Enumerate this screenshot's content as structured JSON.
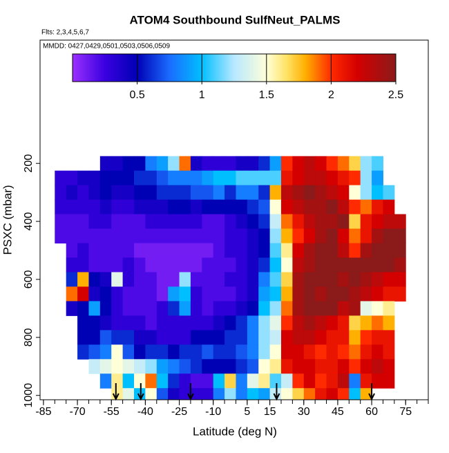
{
  "chart_data": {
    "type": "curtain",
    "title": "ATOM4 Southbound SulfNeut_PALMS",
    "subtitle": "Flts: 2,3,4,5,6,7",
    "annotation": "MMDD: 0427,0429,0501,0503,0506,0509",
    "xlabel": "Latitude (deg N)",
    "ylabel": "PSXC (mbar)",
    "xlim": [
      -86.5,
      85
    ],
    "ylim": [
      -225,
      1015
    ],
    "xticks": [
      -85,
      -70,
      -55,
      -40,
      -25,
      -10,
      5,
      15,
      30,
      45,
      60,
      75
    ],
    "xminorticks": [
      -85,
      -80,
      -75,
      -70,
      -65,
      -60,
      -55,
      -50,
      -45,
      -40,
      -35,
      -30,
      -25,
      -20,
      -15,
      -10,
      -5,
      0,
      5,
      10,
      15,
      20,
      25,
      30,
      35,
      40,
      45,
      50,
      55,
      60,
      65,
      70,
      75,
      80,
      85
    ],
    "yticks": [
      200,
      400,
      600,
      800,
      1000
    ],
    "colorbar_lim": [
      0,
      2.5
    ],
    "colorbar_ticks": [
      0.5,
      1.0,
      1.5,
      2.0,
      2.5
    ],
    "colorscale": [
      [
        0,
        "#9b30ff"
      ],
      [
        0.25,
        "#3a00e0"
      ],
      [
        0.5,
        "#0000b4"
      ],
      [
        0.75,
        "#1a6cff"
      ],
      [
        1.0,
        "#00bfff"
      ],
      [
        1.25,
        "#b8e8ff"
      ],
      [
        1.5,
        "#ffffd8"
      ],
      [
        1.65,
        "#ffe46a"
      ],
      [
        1.8,
        "#ffb000"
      ],
      [
        2.0,
        "#ff2a00"
      ],
      [
        2.2,
        "#d40000"
      ],
      [
        2.5,
        "#8b1a1a"
      ]
    ],
    "arrows": [
      -53,
      -42,
      -20,
      18,
      60
    ],
    "lat_edges": [
      -80,
      -75,
      -70,
      -65,
      -60,
      -55,
      -50,
      -45,
      -40,
      -35,
      -30,
      -25,
      -20,
      -15,
      -10,
      -5,
      0,
      5,
      10,
      15,
      20,
      25,
      30,
      35,
      40,
      45,
      50,
      55,
      60,
      65,
      70,
      75
    ],
    "pressure": [
      200,
      250,
      300,
      350,
      400,
      450,
      500,
      550,
      600,
      650,
      700,
      750,
      800,
      850,
      900,
      950,
      1000
    ],
    "values": [
      [
        null,
        null,
        null,
        null,
        0.4,
        0.4,
        0.5,
        0.5,
        0.8,
        0.9,
        1.2,
        1.9,
        0.4,
        0.3,
        0.3,
        0.3,
        0.4,
        0.4,
        0.6,
        0.9,
        2.0,
        2.2,
        2.3,
        2.2,
        2.0,
        1.9,
        1.7,
        1.2,
        1.1,
        null,
        null
      ],
      [
        0.3,
        0.3,
        0.4,
        0.4,
        0.5,
        0.5,
        0.5,
        0.6,
        0.6,
        0.7,
        0.8,
        0.8,
        0.8,
        0.9,
        1.0,
        1.0,
        1.1,
        1.1,
        1.1,
        1.1,
        2.1,
        2.2,
        2.3,
        2.3,
        2.2,
        2.1,
        2.0,
        1.2,
        0.9,
        null,
        null
      ],
      [
        0.3,
        0.4,
        0.3,
        0.4,
        0.5,
        0.4,
        0.4,
        0.5,
        0.5,
        0.6,
        0.6,
        0.6,
        0.7,
        0.7,
        0.8,
        0.6,
        0.8,
        0.8,
        0.6,
        1.8,
        2.3,
        2.4,
        2.5,
        2.4,
        2.3,
        2.2,
        1.5,
        1.2,
        1.0,
        1.1,
        null
      ],
      [
        0.3,
        0.3,
        0.3,
        0.3,
        0.4,
        0.3,
        0.3,
        0.4,
        0.4,
        0.4,
        0.5,
        0.5,
        0.4,
        0.5,
        0.5,
        0.5,
        0.5,
        0.6,
        0.7,
        1.5,
        2.2,
        2.3,
        2.4,
        2.4,
        2.5,
        2.3,
        2.0,
        1.9,
        2.1,
        2.2,
        null
      ],
      [
        0.2,
        0.2,
        0.2,
        0.3,
        0.3,
        0.2,
        0.2,
        0.2,
        0.3,
        0.3,
        0.3,
        0.3,
        0.3,
        0.2,
        0.2,
        0.3,
        0.4,
        0.5,
        0.6,
        1.3,
        1.9,
        2.1,
        2.3,
        2.4,
        2.4,
        2.5,
        1.7,
        2.1,
        2.2,
        2.3,
        2.3
      ],
      [
        0.2,
        0.2,
        0.2,
        0.2,
        0.2,
        0.2,
        0.2,
        0.2,
        0.2,
        0.2,
        0.2,
        0.2,
        0.2,
        0.2,
        0.2,
        0.3,
        0.3,
        0.4,
        0.5,
        1.2,
        1.8,
        2.0,
        2.2,
        2.4,
        2.5,
        2.2,
        1.9,
        2.1,
        2.4,
        2.5,
        2.5
      ],
      [
        null,
        0.2,
        0.3,
        0.2,
        0.2,
        0.2,
        0.2,
        0.1,
        0.1,
        0.1,
        0.1,
        0.1,
        0.1,
        0.1,
        0.2,
        0.3,
        0.3,
        0.4,
        0.5,
        1.1,
        1.6,
        2.2,
        2.4,
        2.5,
        2.5,
        2.3,
        2.0,
        2.4,
        2.5,
        2.5,
        2.5
      ],
      [
        null,
        0.3,
        0.3,
        0.2,
        0.2,
        0.2,
        0.3,
        0.2,
        0.1,
        0.1,
        0.1,
        0.1,
        0.1,
        0.2,
        0.2,
        0.2,
        0.3,
        0.4,
        0.6,
        1.0,
        1.5,
        2.3,
        2.4,
        2.5,
        2.5,
        2.5,
        2.5,
        2.5,
        2.5,
        2.5,
        2.4
      ],
      [
        null,
        0.6,
        1.8,
        0.5,
        0.4,
        1.4,
        0.3,
        0.2,
        0.2,
        0.1,
        0.1,
        1.2,
        0.2,
        0.2,
        0.2,
        0.3,
        0.3,
        0.4,
        0.8,
        1.1,
        1.7,
        2.4,
        2.5,
        2.5,
        2.5,
        2.4,
        2.5,
        2.4,
        2.3,
        2.2,
        2.2
      ],
      [
        null,
        1.9,
        2.2,
        0.4,
        0.5,
        0.3,
        0.2,
        0.2,
        0.2,
        0.1,
        0.9,
        1.0,
        0.3,
        0.2,
        0.2,
        0.2,
        0.3,
        0.4,
        0.9,
        1.0,
        1.8,
        2.4,
        2.5,
        2.4,
        2.5,
        2.5,
        2.4,
        2.3,
        2.2,
        2.1,
        2.1
      ],
      [
        null,
        0.4,
        0.5,
        0.9,
        0.5,
        0.3,
        0.2,
        0.2,
        0.2,
        0.3,
        0.6,
        0.9,
        0.3,
        0.2,
        0.3,
        0.3,
        0.4,
        0.5,
        1.0,
        1.2,
        1.9,
        2.4,
        2.5,
        2.5,
        2.5,
        2.3,
        2.4,
        1.4,
        1.5,
        1.6,
        null
      ],
      [
        null,
        null,
        0.5,
        0.5,
        0.4,
        0.3,
        0.3,
        0.3,
        0.2,
        0.3,
        0.3,
        0.3,
        0.3,
        0.3,
        0.4,
        0.5,
        0.6,
        0.8,
        1.2,
        1.4,
        2.0,
        2.3,
        2.4,
        2.3,
        2.2,
        2.1,
        1.7,
        1.8,
        1.9,
        1.8,
        null
      ],
      [
        null,
        null,
        0.5,
        0.5,
        0.7,
        0.6,
        0.6,
        0.4,
        0.4,
        0.3,
        0.3,
        0.3,
        0.5,
        0.5,
        0.5,
        0.6,
        0.6,
        0.8,
        1.2,
        1.3,
        2.2,
        2.3,
        2.3,
        2.2,
        2.1,
        2.1,
        1.8,
        2.0,
        2.1,
        2.1,
        null
      ],
      [
        null,
        null,
        0.6,
        0.7,
        0.8,
        1.5,
        0.7,
        0.5,
        0.6,
        0.6,
        0.5,
        0.6,
        0.6,
        0.7,
        0.6,
        0.6,
        0.7,
        0.8,
        1.2,
        1.5,
        2.2,
        2.2,
        2.1,
        2.0,
        2.1,
        2.0,
        1.9,
        2.1,
        2.2,
        2.1,
        null
      ],
      [
        null,
        null,
        null,
        1.3,
        1.4,
        1.5,
        1.4,
        1.3,
        1.2,
        0.9,
        0.8,
        0.7,
        0.6,
        0.5,
        0.5,
        0.5,
        0.6,
        0.7,
        1.5,
        1.6,
        2.1,
        2.2,
        2.2,
        2.1,
        2.1,
        2.2,
        2.0,
        2.2,
        2.3,
        2.2,
        null
      ],
      [
        null,
        null,
        null,
        null,
        0.8,
        1.6,
        1.0,
        1.5,
        1.9,
        1.0,
        0.6,
        0.3,
        0.2,
        0.2,
        1.0,
        1.7,
        0.8,
        1.4,
        1.6,
        1.1,
        1.3,
        2.0,
        2.2,
        2.0,
        2.1,
        2.3,
        0.8,
        2.1,
        2.2,
        2.2,
        null
      ],
      [
        null,
        null,
        null,
        null,
        null,
        1.6,
        1.4,
        1.0,
        1.5,
        0.7,
        0.4,
        0.3,
        0.3,
        0.3,
        0.8,
        1.2,
        0.8,
        1.0,
        0.9,
        1.3,
        1.5,
        1.7,
        1.9,
        2.1,
        2.2,
        2.0,
        1.0,
        1.8,
        null,
        null,
        null
      ]
    ]
  }
}
